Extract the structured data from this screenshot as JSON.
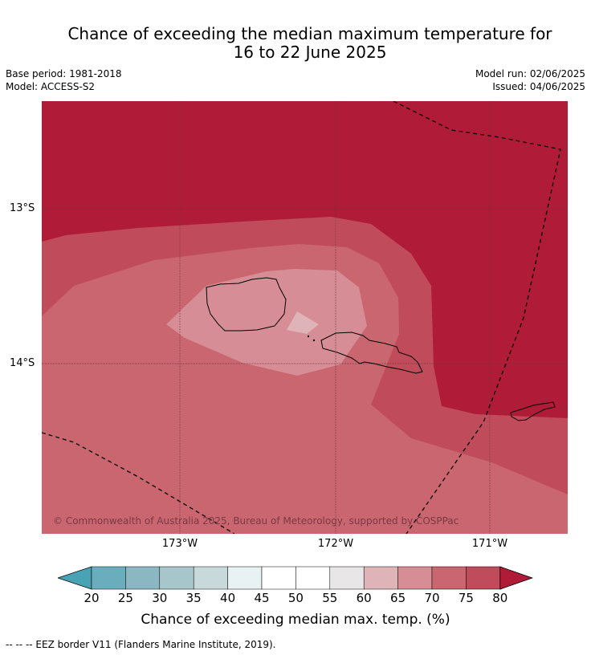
{
  "title_line1": "Chance of exceeding the median maximum temperature for",
  "title_line2": "16 to 22 June 2025",
  "base_period": "Base period: 1981-2018",
  "model": "Model: ACCESS-S2",
  "model_run": "Model run: 02/06/2025",
  "issued": "Issued: 04/06/2025",
  "lat_labels": [
    "13°S",
    "14°S"
  ],
  "lon_labels": [
    "173°W",
    "172°W",
    "171°W"
  ],
  "copyright": "© Commonwealth of Australia 2025, Bureau of Meteorology, supported by COSPPac",
  "colorbar": {
    "ticks": [
      "20",
      "25",
      "30",
      "35",
      "40",
      "45",
      "50",
      "55",
      "60",
      "65",
      "70",
      "75",
      "80"
    ],
    "colors": [
      "#4aa3b4",
      "#6aaebe",
      "#8ab7c2",
      "#a7c6cb",
      "#c8d9dc",
      "#e8f1f3",
      "#ffffff",
      "#ffffff",
      "#e8e6e7",
      "#dfb4b8",
      "#d68d95",
      "#c9666f",
      "#c04c5b",
      "#b01c38"
    ],
    "label": "Chance of exceeding median max. temp. (%)"
  },
  "footnote": "--  --  -- EEZ border V11 (Flanders Marine Institute, 2019)."
}
